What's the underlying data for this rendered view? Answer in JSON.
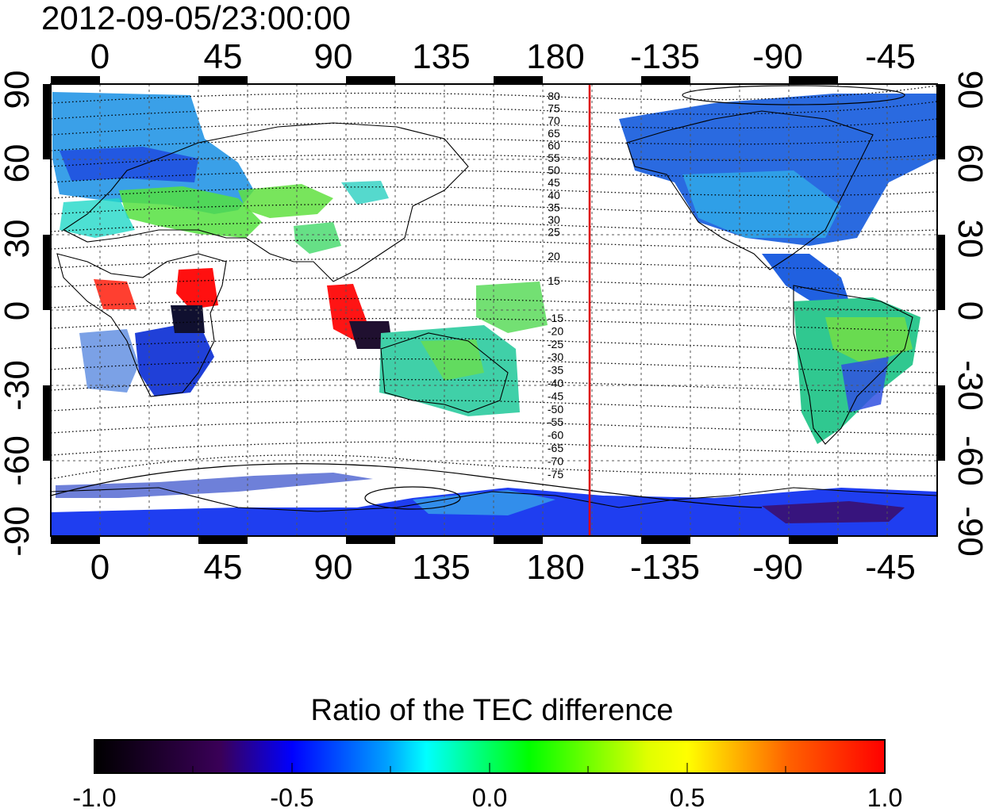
{
  "title": "2012-09-05/23:00:00",
  "map": {
    "top_ticks": [
      "0",
      "45",
      "90",
      "135",
      "180",
      "-135",
      "-90",
      "-45"
    ],
    "bottom_ticks": [
      "0",
      "45",
      "90",
      "135",
      "180",
      "-135",
      "-90",
      "-45"
    ],
    "left_ticks": [
      "90",
      "60",
      "30",
      "0",
      "-30",
      "-60",
      "-90"
    ],
    "right_ticks": [
      "90",
      "60",
      "30",
      "0",
      "-30",
      "-60",
      "-90"
    ],
    "contour_labels_north": [
      "80",
      "75",
      "70",
      "65",
      "60",
      "55",
      "50",
      "45",
      "40",
      "35",
      "30",
      "25",
      "20",
      "15"
    ],
    "contour_labels_south": [
      "-15",
      "-20",
      "-25",
      "-30",
      "-35",
      "-40",
      "-45",
      "-50",
      "-55",
      "-60",
      "-65",
      "-70",
      "-75"
    ],
    "marker_longitude": -165,
    "marker_color": "#dd0000"
  },
  "colorbar": {
    "title": "Ratio of the TEC difference",
    "ticks": [
      "-1.0",
      "-0.5",
      "0.0",
      "0.5",
      "1.0"
    ],
    "range": [
      -1.0,
      1.0
    ],
    "colors": [
      "#000000",
      "#3a0058",
      "#0000ff",
      "#00ffff",
      "#00ff00",
      "#ffff00",
      "#ff0000"
    ]
  }
}
